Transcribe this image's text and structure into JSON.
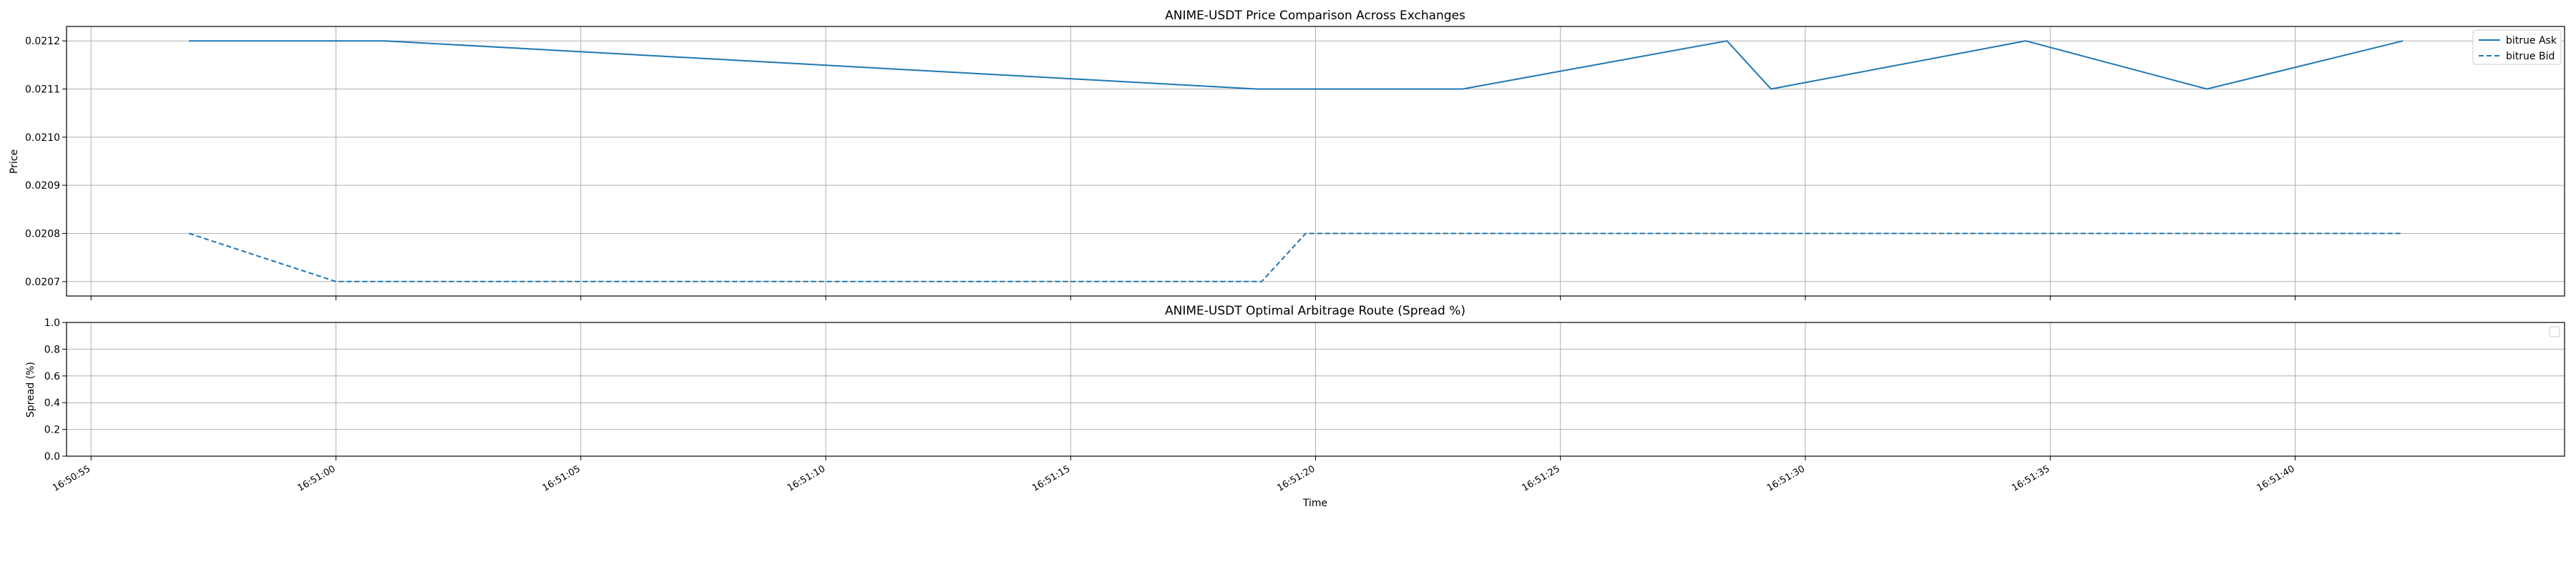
{
  "figure": {
    "xlabel": "Time",
    "x_ticks": [
      "16:50:55",
      "16:51:00",
      "16:51:05",
      "16:51:10",
      "16:51:15",
      "16:51:20",
      "16:51:25",
      "16:51:30",
      "16:51:35",
      "16:51:40"
    ]
  },
  "chart_data": [
    {
      "type": "line",
      "title": "ANIME-USDT Price Comparison Across Exchanges",
      "xlabel": "",
      "ylabel": "Price",
      "xlim": [
        "16:50:54.5",
        "16:51:45.5"
      ],
      "ylim": [
        0.02067,
        0.02123
      ],
      "yticks": [
        "0.0207",
        "0.0208",
        "0.0209",
        "0.0210",
        "0.0211",
        "0.0212"
      ],
      "grid": true,
      "legend_position": "top-right",
      "series": [
        {
          "name": "bitrue Ask",
          "style": "solid",
          "color": "#1f77b4",
          "x": [
            "16:50:57.0",
            "16:51:01.0",
            "16:51:18.8",
            "16:51:23.0",
            "16:51:28.4",
            "16:51:29.3",
            "16:51:34.5",
            "16:51:38.2",
            "16:51:42.2"
          ],
          "y": [
            0.0212,
            0.0212,
            0.0211,
            0.0211,
            0.0212,
            0.0211,
            0.0212,
            0.0211,
            0.0212
          ]
        },
        {
          "name": "bitrue Bid",
          "style": "dashed",
          "color": "#1f77b4",
          "x": [
            "16:50:57.0",
            "16:51:00.0",
            "16:51:18.9",
            "16:51:19.8",
            "16:51:42.2"
          ],
          "y": [
            0.0208,
            0.0207,
            0.0207,
            0.0208,
            0.0208
          ]
        }
      ]
    },
    {
      "type": "line",
      "title": "ANIME-USDT Optimal Arbitrage Route (Spread %)",
      "xlabel": "Time",
      "ylabel": "Spread (%)",
      "xlim": [
        "16:50:54.5",
        "16:51:45.5"
      ],
      "ylim": [
        0.0,
        1.0
      ],
      "yticks": [
        "0.0",
        "0.2",
        "0.4",
        "0.6",
        "0.8",
        "1.0"
      ],
      "grid": true,
      "legend_position": "top-right",
      "series": []
    }
  ]
}
